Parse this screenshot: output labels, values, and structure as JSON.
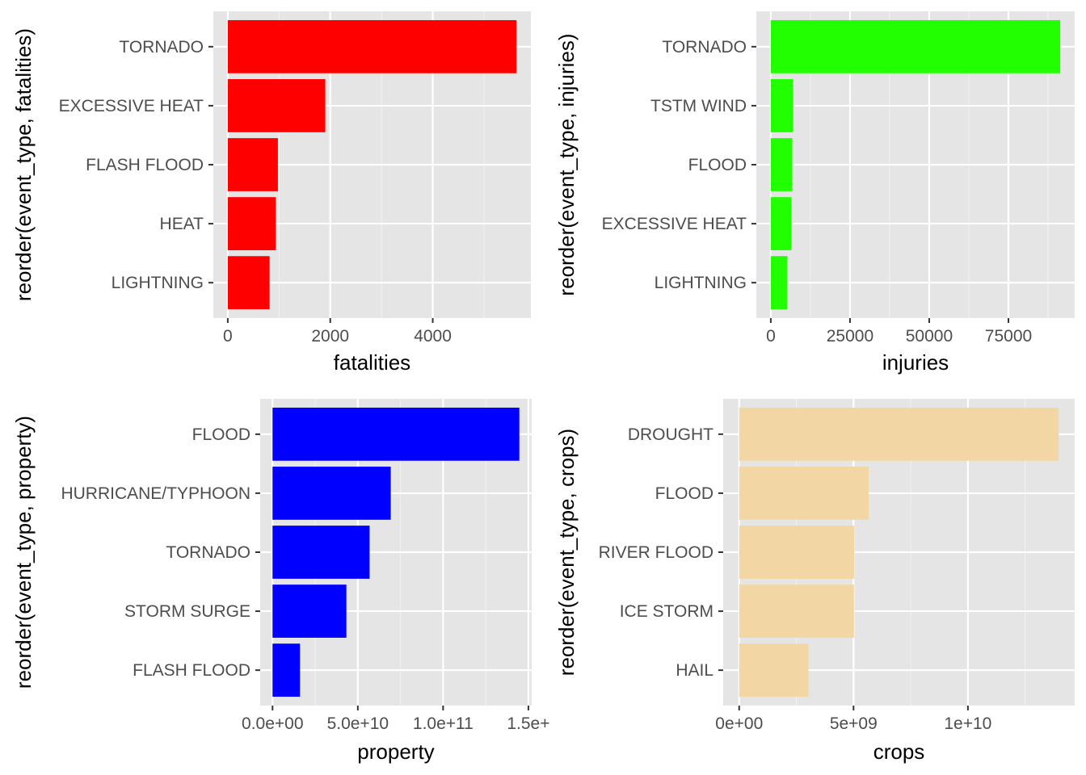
{
  "chart_data": [
    {
      "type": "bar",
      "orientation": "horizontal",
      "color": "#ff0000",
      "categories": [
        "TORNADO",
        "EXCESSIVE HEAT",
        "FLASH FLOOD",
        "HEAT",
        "LIGHTNING"
      ],
      "values": [
        5633,
        1903,
        978,
        937,
        816
      ],
      "xlabel": "fatalities",
      "ylabel": "reorder(event_type, fatalities)",
      "xticks": [
        0,
        2000,
        4000
      ],
      "xtick_labels": [
        "0",
        "2000",
        "4000"
      ],
      "xlim": [
        -282,
        5915
      ]
    },
    {
      "type": "bar",
      "orientation": "horizontal",
      "color": "#22ff00",
      "categories": [
        "TORNADO",
        "TSTM WIND",
        "FLOOD",
        "EXCESSIVE HEAT",
        "LIGHTNING"
      ],
      "values": [
        91346,
        6957,
        6789,
        6525,
        5230
      ],
      "xlabel": "injuries",
      "ylabel": "reorder(event_type, injuries)",
      "xticks": [
        0,
        25000,
        50000,
        75000
      ],
      "xtick_labels": [
        "0",
        "25000",
        "50000",
        "75000"
      ],
      "xlim": [
        -4567,
        95913
      ]
    },
    {
      "type": "bar",
      "orientation": "horizontal",
      "color": "#0000ff",
      "categories": [
        "FLOOD",
        "HURRICANE/TYPHOON",
        "TORNADO",
        "STORM SURGE",
        "FLASH FLOOD"
      ],
      "values": [
        144700000000,
        69300000000,
        56900000000,
        43300000000,
        16100000000
      ],
      "xlabel": "property",
      "ylabel": "reorder(event_type, property)",
      "xticks": [
        0,
        50000000000,
        100000000000,
        150000000000
      ],
      "xtick_labels": [
        "0.0e+00",
        "5.0e+10",
        "1.0e+11",
        "1.5e+"
      ],
      "xlim": [
        -7235000000,
        151935000000
      ]
    },
    {
      "type": "bar",
      "orientation": "horizontal",
      "color": "#f2d7a4",
      "categories": [
        "DROUGHT",
        "FLOOD",
        "RIVER FLOOD",
        "ICE STORM",
        "HAIL"
      ],
      "values": [
        13970000000,
        5660000000,
        5030000000,
        5020000000,
        3030000000
      ],
      "xlabel": "crops",
      "ylabel": "reorder(event_type, crops)",
      "xticks": [
        0,
        5000000000,
        10000000000
      ],
      "xtick_labels": [
        "0e+00",
        "5e+09",
        "1e+10"
      ],
      "xlim": [
        -698500000,
        14668500000
      ]
    }
  ]
}
